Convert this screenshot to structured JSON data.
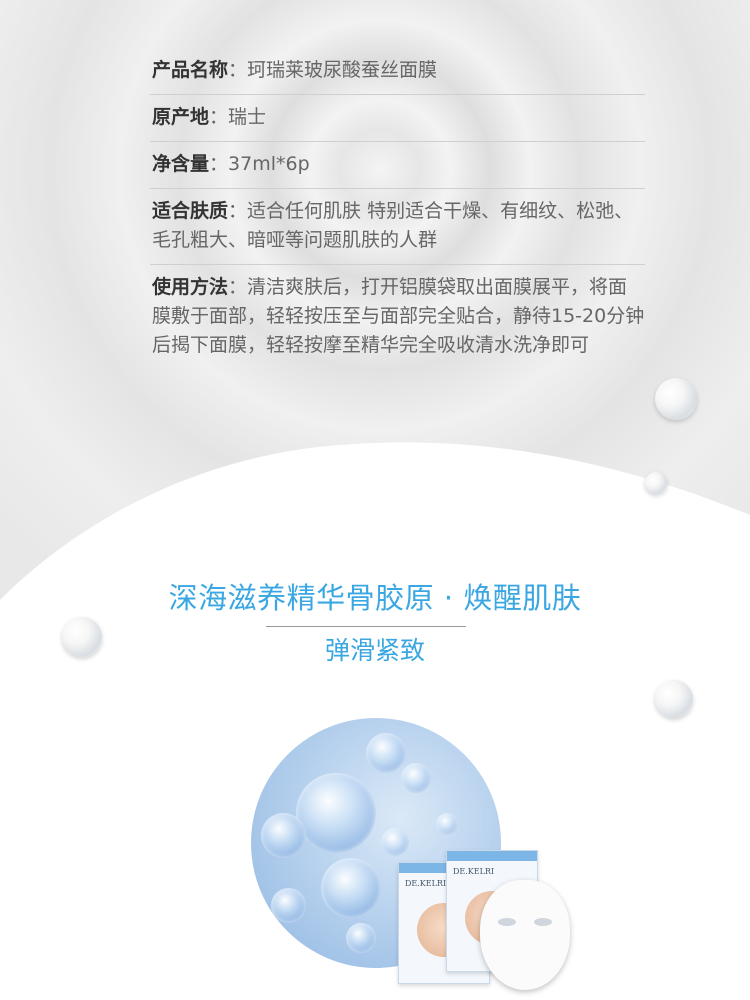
{
  "specs": [
    {
      "label": "产品名称",
      "sep": "：",
      "value": "珂瑞莱玻尿酸蚕丝面膜"
    },
    {
      "label": "原产地",
      "sep": "：",
      "value": "瑞士"
    },
    {
      "label": "净含量",
      "sep": "：",
      "value": "37ml*6p"
    },
    {
      "label": "适合肤质",
      "sep": "：",
      "value": "适合任何肌肤 特别适合干燥、有细纹、松弛、毛孔粗大、暗哑等问题肌肤的人群"
    },
    {
      "label": "使用方法",
      "sep": "：",
      "value": "清洁爽肤后，打开铝膜袋取出面膜展平，将面膜敷于面部，轻轻按压至与面部完全贴合，静待15-20分钟后揭下面膜，轻轻按摩至精华完全吸收清水洗净即可"
    }
  ],
  "headline": "深海滋养精华骨胶原 · 焕醒肌肤",
  "subline": "弹滑紧致",
  "pack_brand": "DE.KELRI",
  "colors": {
    "accent": "#3aa7e2"
  }
}
